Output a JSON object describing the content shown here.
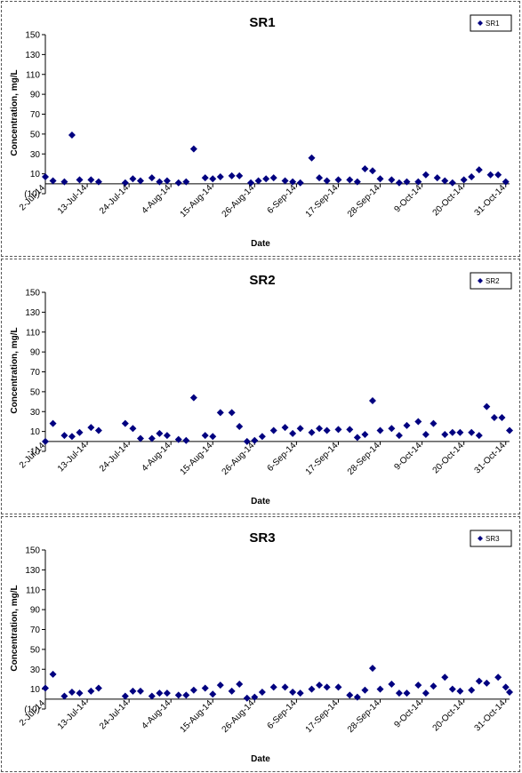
{
  "chart_data": [
    {
      "type": "scatter",
      "title": "SR1",
      "xlabel": "Date",
      "ylabel": "Concentration, mg/L",
      "ylim": [
        -10,
        150
      ],
      "yticks": [
        -10,
        10,
        30,
        50,
        70,
        90,
        110,
        130,
        150
      ],
      "ytick_labels": [
        "(10)",
        "10",
        "30",
        "50",
        "70",
        "90",
        "110",
        "130",
        "150"
      ],
      "xlim": [
        "2014-07-02",
        "2014-11-01"
      ],
      "xticks": [
        "2014-07-02",
        "2014-07-13",
        "2014-07-24",
        "2014-08-04",
        "2014-08-15",
        "2014-08-26",
        "2014-09-06",
        "2014-09-17",
        "2014-09-28",
        "2014-10-09",
        "2014-10-20",
        "2014-10-31"
      ],
      "xtick_labels": [
        "2-Jul-14",
        "13-Jul-14",
        "24-Jul-14",
        "4-Aug-14",
        "15-Aug-14",
        "26-Aug-14",
        "6-Sep-14",
        "17-Sep-14",
        "28-Sep-14",
        "9-Oct-14",
        "20-Oct-14",
        "31-Oct-14"
      ],
      "grid": false,
      "legend": "top-right",
      "series": [
        {
          "name": "SR1",
          "color": "#000080",
          "marker": "diamond",
          "points": [
            {
              "x": "2014-07-02",
              "y": 7
            },
            {
              "x": "2014-07-04",
              "y": 3
            },
            {
              "x": "2014-07-07",
              "y": 2
            },
            {
              "x": "2014-07-09",
              "y": 49
            },
            {
              "x": "2014-07-11",
              "y": 4
            },
            {
              "x": "2014-07-14",
              "y": 4
            },
            {
              "x": "2014-07-16",
              "y": 2
            },
            {
              "x": "2014-07-23",
              "y": 1
            },
            {
              "x": "2014-07-25",
              "y": 5
            },
            {
              "x": "2014-07-27",
              "y": 3
            },
            {
              "x": "2014-07-30",
              "y": 6
            },
            {
              "x": "2014-08-01",
              "y": 2
            },
            {
              "x": "2014-08-03",
              "y": 3
            },
            {
              "x": "2014-08-06",
              "y": 1
            },
            {
              "x": "2014-08-08",
              "y": 2
            },
            {
              "x": "2014-08-10",
              "y": 35
            },
            {
              "x": "2014-08-13",
              "y": 6
            },
            {
              "x": "2014-08-15",
              "y": 5
            },
            {
              "x": "2014-08-17",
              "y": 7
            },
            {
              "x": "2014-08-20",
              "y": 8
            },
            {
              "x": "2014-08-22",
              "y": 8
            },
            {
              "x": "2014-08-25",
              "y": 1
            },
            {
              "x": "2014-08-27",
              "y": 3
            },
            {
              "x": "2014-08-29",
              "y": 5
            },
            {
              "x": "2014-08-31",
              "y": 6
            },
            {
              "x": "2014-09-03",
              "y": 3
            },
            {
              "x": "2014-09-05",
              "y": 2
            },
            {
              "x": "2014-09-07",
              "y": 1
            },
            {
              "x": "2014-09-10",
              "y": 26
            },
            {
              "x": "2014-09-12",
              "y": 6
            },
            {
              "x": "2014-09-14",
              "y": 3
            },
            {
              "x": "2014-09-17",
              "y": 4
            },
            {
              "x": "2014-09-20",
              "y": 4
            },
            {
              "x": "2014-09-22",
              "y": 2
            },
            {
              "x": "2014-09-24",
              "y": 15
            },
            {
              "x": "2014-09-26",
              "y": 13
            },
            {
              "x": "2014-09-28",
              "y": 5
            },
            {
              "x": "2014-10-01",
              "y": 4
            },
            {
              "x": "2014-10-03",
              "y": 1
            },
            {
              "x": "2014-10-05",
              "y": 2
            },
            {
              "x": "2014-10-08",
              "y": 2
            },
            {
              "x": "2014-10-10",
              "y": 9
            },
            {
              "x": "2014-10-13",
              "y": 6
            },
            {
              "x": "2014-10-15",
              "y": 3
            },
            {
              "x": "2014-10-17",
              "y": 1
            },
            {
              "x": "2014-10-20",
              "y": 4
            },
            {
              "x": "2014-10-22",
              "y": 7
            },
            {
              "x": "2014-10-24",
              "y": 14
            },
            {
              "x": "2014-10-27",
              "y": 9
            },
            {
              "x": "2014-10-29",
              "y": 9
            },
            {
              "x": "2014-10-31",
              "y": 2
            }
          ]
        }
      ]
    },
    {
      "type": "scatter",
      "title": "SR2",
      "xlabel": "Date",
      "ylabel": "Concentration, mg/L",
      "ylim": [
        -10,
        150
      ],
      "yticks": [
        -10,
        10,
        30,
        50,
        70,
        90,
        110,
        130,
        150
      ],
      "ytick_labels": [
        "-10",
        "10",
        "30",
        "50",
        "70",
        "90",
        "110",
        "130",
        "150"
      ],
      "xlim": [
        "2014-07-02",
        "2014-11-01"
      ],
      "xticks": [
        "2014-07-02",
        "2014-07-13",
        "2014-07-24",
        "2014-08-04",
        "2014-08-15",
        "2014-08-26",
        "2014-09-06",
        "2014-09-17",
        "2014-09-28",
        "2014-10-09",
        "2014-10-20",
        "2014-10-31"
      ],
      "xtick_labels": [
        "2-Jul-14",
        "13-Jul-14",
        "24-Jul-14",
        "4-Aug-14",
        "15-Aug-14",
        "26-Aug-14",
        "6-Sep-14",
        "17-Sep-14",
        "28-Sep-14",
        "9-Oct-14",
        "20-Oct-14",
        "31-Oct-14"
      ],
      "grid": false,
      "legend": "top-right",
      "series": [
        {
          "name": "SR2",
          "color": "#000080",
          "marker": "diamond",
          "points": [
            {
              "x": "2014-07-02",
              "y": 0
            },
            {
              "x": "2014-07-04",
              "y": 18
            },
            {
              "x": "2014-07-07",
              "y": 6
            },
            {
              "x": "2014-07-09",
              "y": 5
            },
            {
              "x": "2014-07-11",
              "y": 9
            },
            {
              "x": "2014-07-14",
              "y": 14
            },
            {
              "x": "2014-07-16",
              "y": 11
            },
            {
              "x": "2014-07-23",
              "y": 18
            },
            {
              "x": "2014-07-25",
              "y": 13
            },
            {
              "x": "2014-07-27",
              "y": 3
            },
            {
              "x": "2014-07-30",
              "y": 3
            },
            {
              "x": "2014-08-01",
              "y": 8
            },
            {
              "x": "2014-08-03",
              "y": 6
            },
            {
              "x": "2014-08-06",
              "y": 2
            },
            {
              "x": "2014-08-08",
              "y": 1
            },
            {
              "x": "2014-08-10",
              "y": 44
            },
            {
              "x": "2014-08-13",
              "y": 6
            },
            {
              "x": "2014-08-15",
              "y": 5
            },
            {
              "x": "2014-08-17",
              "y": 29
            },
            {
              "x": "2014-08-20",
              "y": 29
            },
            {
              "x": "2014-08-22",
              "y": 15
            },
            {
              "x": "2014-08-24",
              "y": 0
            },
            {
              "x": "2014-08-26",
              "y": 1
            },
            {
              "x": "2014-08-28",
              "y": 5
            },
            {
              "x": "2014-08-31",
              "y": 11
            },
            {
              "x": "2014-09-03",
              "y": 14
            },
            {
              "x": "2014-09-05",
              "y": 8
            },
            {
              "x": "2014-09-07",
              "y": 13
            },
            {
              "x": "2014-09-10",
              "y": 9
            },
            {
              "x": "2014-09-12",
              "y": 13
            },
            {
              "x": "2014-09-14",
              "y": 11
            },
            {
              "x": "2014-09-17",
              "y": 12
            },
            {
              "x": "2014-09-20",
              "y": 12
            },
            {
              "x": "2014-09-22",
              "y": 4
            },
            {
              "x": "2014-09-24",
              "y": 7
            },
            {
              "x": "2014-09-26",
              "y": 41
            },
            {
              "x": "2014-09-28",
              "y": 11
            },
            {
              "x": "2014-10-01",
              "y": 13
            },
            {
              "x": "2014-10-03",
              "y": 6
            },
            {
              "x": "2014-10-05",
              "y": 16
            },
            {
              "x": "2014-10-08",
              "y": 20
            },
            {
              "x": "2014-10-10",
              "y": 7
            },
            {
              "x": "2014-10-12",
              "y": 18
            },
            {
              "x": "2014-10-15",
              "y": 7
            },
            {
              "x": "2014-10-17",
              "y": 9
            },
            {
              "x": "2014-10-19",
              "y": 9
            },
            {
              "x": "2014-10-22",
              "y": 9
            },
            {
              "x": "2014-10-24",
              "y": 6
            },
            {
              "x": "2014-10-26",
              "y": 35
            },
            {
              "x": "2014-10-28",
              "y": 24
            },
            {
              "x": "2014-10-30",
              "y": 24
            },
            {
              "x": "2014-11-01",
              "y": 11
            }
          ]
        }
      ]
    },
    {
      "type": "scatter",
      "title": "SR3",
      "xlabel": "Date",
      "ylabel": "Concentration, mg/L",
      "ylim": [
        -10,
        150
      ],
      "yticks": [
        -10,
        10,
        30,
        50,
        70,
        90,
        110,
        130,
        150
      ],
      "ytick_labels": [
        "(10)",
        "10",
        "30",
        "50",
        "70",
        "90",
        "110",
        "130",
        "150"
      ],
      "xlim": [
        "2014-07-02",
        "2014-11-01"
      ],
      "xticks": [
        "2014-07-02",
        "2014-07-13",
        "2014-07-24",
        "2014-08-04",
        "2014-08-15",
        "2014-08-26",
        "2014-09-06",
        "2014-09-17",
        "2014-09-28",
        "2014-10-09",
        "2014-10-20",
        "2014-10-31"
      ],
      "xtick_labels": [
        "2-Jul-14",
        "13-Jul-14",
        "24-Jul-14",
        "4-Aug-14",
        "15-Aug-14",
        "26-Aug-14",
        "6-Sep-14",
        "17-Sep-14",
        "28-Sep-14",
        "9-Oct-14",
        "20-Oct-14",
        "31-Oct-14"
      ],
      "grid": false,
      "legend": "top-right",
      "series": [
        {
          "name": "SR3",
          "color": "#000080",
          "marker": "diamond",
          "points": [
            {
              "x": "2014-07-02",
              "y": 11
            },
            {
              "x": "2014-07-04",
              "y": 25
            },
            {
              "x": "2014-07-07",
              "y": 3
            },
            {
              "x": "2014-07-09",
              "y": 7
            },
            {
              "x": "2014-07-11",
              "y": 6
            },
            {
              "x": "2014-07-14",
              "y": 8
            },
            {
              "x": "2014-07-16",
              "y": 11
            },
            {
              "x": "2014-07-23",
              "y": 3
            },
            {
              "x": "2014-07-25",
              "y": 8
            },
            {
              "x": "2014-07-27",
              "y": 8
            },
            {
              "x": "2014-07-30",
              "y": 3
            },
            {
              "x": "2014-08-01",
              "y": 6
            },
            {
              "x": "2014-08-03",
              "y": 6
            },
            {
              "x": "2014-08-06",
              "y": 4
            },
            {
              "x": "2014-08-08",
              "y": 4
            },
            {
              "x": "2014-08-10",
              "y": 9
            },
            {
              "x": "2014-08-13",
              "y": 11
            },
            {
              "x": "2014-08-15",
              "y": 5
            },
            {
              "x": "2014-08-17",
              "y": 14
            },
            {
              "x": "2014-08-20",
              "y": 8
            },
            {
              "x": "2014-08-22",
              "y": 15
            },
            {
              "x": "2014-08-24",
              "y": 1
            },
            {
              "x": "2014-08-26",
              "y": 2
            },
            {
              "x": "2014-08-28",
              "y": 7
            },
            {
              "x": "2014-08-31",
              "y": 12
            },
            {
              "x": "2014-09-03",
              "y": 12
            },
            {
              "x": "2014-09-05",
              "y": 7
            },
            {
              "x": "2014-09-07",
              "y": 6
            },
            {
              "x": "2014-09-10",
              "y": 10
            },
            {
              "x": "2014-09-12",
              "y": 14
            },
            {
              "x": "2014-09-14",
              "y": 12
            },
            {
              "x": "2014-09-17",
              "y": 12
            },
            {
              "x": "2014-09-20",
              "y": 4
            },
            {
              "x": "2014-09-22",
              "y": 2
            },
            {
              "x": "2014-09-24",
              "y": 9
            },
            {
              "x": "2014-09-26",
              "y": 31
            },
            {
              "x": "2014-09-28",
              "y": 10
            },
            {
              "x": "2014-10-01",
              "y": 15
            },
            {
              "x": "2014-10-03",
              "y": 6
            },
            {
              "x": "2014-10-05",
              "y": 6
            },
            {
              "x": "2014-10-08",
              "y": 14
            },
            {
              "x": "2014-10-10",
              "y": 6
            },
            {
              "x": "2014-10-12",
              "y": 13
            },
            {
              "x": "2014-10-15",
              "y": 22
            },
            {
              "x": "2014-10-17",
              "y": 10
            },
            {
              "x": "2014-10-19",
              "y": 8
            },
            {
              "x": "2014-10-22",
              "y": 9
            },
            {
              "x": "2014-10-24",
              "y": 18
            },
            {
              "x": "2014-10-26",
              "y": 16
            },
            {
              "x": "2014-10-29",
              "y": 22
            },
            {
              "x": "2014-10-31",
              "y": 12
            },
            {
              "x": "2014-11-01",
              "y": 7
            }
          ]
        }
      ]
    }
  ]
}
